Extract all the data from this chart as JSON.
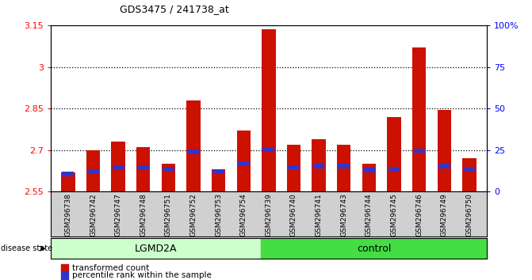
{
  "title": "GDS3475 / 241738_at",
  "samples": [
    "GSM296738",
    "GSM296742",
    "GSM296747",
    "GSM296748",
    "GSM296751",
    "GSM296752",
    "GSM296753",
    "GSM296754",
    "GSM296739",
    "GSM296740",
    "GSM296741",
    "GSM296743",
    "GSM296744",
    "GSM296745",
    "GSM296746",
    "GSM296749",
    "GSM296750"
  ],
  "red_values": [
    2.62,
    2.7,
    2.73,
    2.71,
    2.65,
    2.88,
    2.63,
    2.77,
    3.135,
    2.72,
    2.74,
    2.72,
    2.65,
    2.82,
    3.07,
    2.845,
    2.67
  ],
  "blue_segment_position": [
    2.606,
    2.615,
    2.628,
    2.628,
    2.625,
    2.685,
    2.615,
    2.645,
    2.695,
    2.63,
    2.635,
    2.635,
    2.62,
    2.625,
    2.69,
    2.635,
    2.625
  ],
  "blue_segment_height": [
    0.016,
    0.016,
    0.016,
    0.016,
    0.016,
    0.016,
    0.016,
    0.016,
    0.016,
    0.016,
    0.016,
    0.016,
    0.016,
    0.016,
    0.016,
    0.016,
    0.016
  ],
  "ymin": 2.55,
  "ymax": 3.15,
  "yticks": [
    2.55,
    2.7,
    2.85,
    3.0,
    3.15
  ],
  "ytick_labels": [
    "2.55",
    "2.7",
    "2.85",
    "3",
    "3.15"
  ],
  "right_yticks": [
    0,
    25,
    50,
    75,
    100
  ],
  "right_ytick_labels": [
    "0",
    "25",
    "50",
    "75",
    "100%"
  ],
  "dotted_lines": [
    3.0,
    2.85,
    2.7
  ],
  "group1_label": "LGMD2A",
  "group2_label": "control",
  "group1_count": 8,
  "group2_count": 9,
  "disease_state_label": "disease state",
  "legend1": "transformed count",
  "legend2": "percentile rank within the sample",
  "bar_color": "#cc1100",
  "blue_color": "#3333cc",
  "background_color": "#ffffff",
  "plot_bg": "#ffffff",
  "group1_bg": "#ccffcc",
  "group2_bg": "#44dd44",
  "label_area_bg": "#d0d0d0",
  "bar_width": 0.55
}
